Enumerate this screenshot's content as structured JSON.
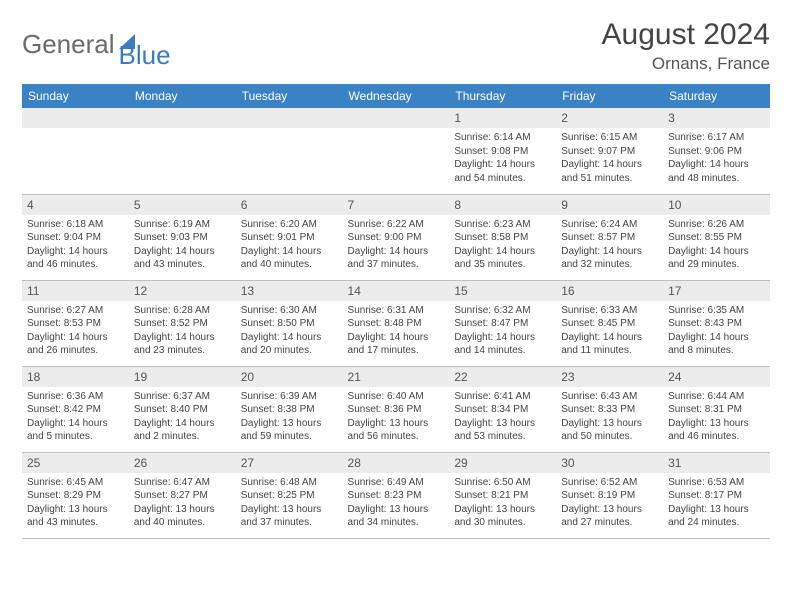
{
  "logo": {
    "text_gray": "General",
    "text_blue": "Blue"
  },
  "header": {
    "month": "August 2024",
    "location": "Ornans, France"
  },
  "colors": {
    "header_blue": "#3b82c4",
    "daynum_bg": "#ececec",
    "border": "#bfbfbf",
    "text": "#444444",
    "logo_gray": "#6b6b6b",
    "logo_blue": "#3b7bbf"
  },
  "weekdays": [
    "Sunday",
    "Monday",
    "Tuesday",
    "Wednesday",
    "Thursday",
    "Friday",
    "Saturday"
  ],
  "weeks": [
    [
      null,
      null,
      null,
      null,
      {
        "n": "1",
        "sr": "6:14 AM",
        "ss": "9:08 PM",
        "dl": "14 hours and 54 minutes."
      },
      {
        "n": "2",
        "sr": "6:15 AM",
        "ss": "9:07 PM",
        "dl": "14 hours and 51 minutes."
      },
      {
        "n": "3",
        "sr": "6:17 AM",
        "ss": "9:06 PM",
        "dl": "14 hours and 48 minutes."
      }
    ],
    [
      {
        "n": "4",
        "sr": "6:18 AM",
        "ss": "9:04 PM",
        "dl": "14 hours and 46 minutes."
      },
      {
        "n": "5",
        "sr": "6:19 AM",
        "ss": "9:03 PM",
        "dl": "14 hours and 43 minutes."
      },
      {
        "n": "6",
        "sr": "6:20 AM",
        "ss": "9:01 PM",
        "dl": "14 hours and 40 minutes."
      },
      {
        "n": "7",
        "sr": "6:22 AM",
        "ss": "9:00 PM",
        "dl": "14 hours and 37 minutes."
      },
      {
        "n": "8",
        "sr": "6:23 AM",
        "ss": "8:58 PM",
        "dl": "14 hours and 35 minutes."
      },
      {
        "n": "9",
        "sr": "6:24 AM",
        "ss": "8:57 PM",
        "dl": "14 hours and 32 minutes."
      },
      {
        "n": "10",
        "sr": "6:26 AM",
        "ss": "8:55 PM",
        "dl": "14 hours and 29 minutes."
      }
    ],
    [
      {
        "n": "11",
        "sr": "6:27 AM",
        "ss": "8:53 PM",
        "dl": "14 hours and 26 minutes."
      },
      {
        "n": "12",
        "sr": "6:28 AM",
        "ss": "8:52 PM",
        "dl": "14 hours and 23 minutes."
      },
      {
        "n": "13",
        "sr": "6:30 AM",
        "ss": "8:50 PM",
        "dl": "14 hours and 20 minutes."
      },
      {
        "n": "14",
        "sr": "6:31 AM",
        "ss": "8:48 PM",
        "dl": "14 hours and 17 minutes."
      },
      {
        "n": "15",
        "sr": "6:32 AM",
        "ss": "8:47 PM",
        "dl": "14 hours and 14 minutes."
      },
      {
        "n": "16",
        "sr": "6:33 AM",
        "ss": "8:45 PM",
        "dl": "14 hours and 11 minutes."
      },
      {
        "n": "17",
        "sr": "6:35 AM",
        "ss": "8:43 PM",
        "dl": "14 hours and 8 minutes."
      }
    ],
    [
      {
        "n": "18",
        "sr": "6:36 AM",
        "ss": "8:42 PM",
        "dl": "14 hours and 5 minutes."
      },
      {
        "n": "19",
        "sr": "6:37 AM",
        "ss": "8:40 PM",
        "dl": "14 hours and 2 minutes."
      },
      {
        "n": "20",
        "sr": "6:39 AM",
        "ss": "8:38 PM",
        "dl": "13 hours and 59 minutes."
      },
      {
        "n": "21",
        "sr": "6:40 AM",
        "ss": "8:36 PM",
        "dl": "13 hours and 56 minutes."
      },
      {
        "n": "22",
        "sr": "6:41 AM",
        "ss": "8:34 PM",
        "dl": "13 hours and 53 minutes."
      },
      {
        "n": "23",
        "sr": "6:43 AM",
        "ss": "8:33 PM",
        "dl": "13 hours and 50 minutes."
      },
      {
        "n": "24",
        "sr": "6:44 AM",
        "ss": "8:31 PM",
        "dl": "13 hours and 46 minutes."
      }
    ],
    [
      {
        "n": "25",
        "sr": "6:45 AM",
        "ss": "8:29 PM",
        "dl": "13 hours and 43 minutes."
      },
      {
        "n": "26",
        "sr": "6:47 AM",
        "ss": "8:27 PM",
        "dl": "13 hours and 40 minutes."
      },
      {
        "n": "27",
        "sr": "6:48 AM",
        "ss": "8:25 PM",
        "dl": "13 hours and 37 minutes."
      },
      {
        "n": "28",
        "sr": "6:49 AM",
        "ss": "8:23 PM",
        "dl": "13 hours and 34 minutes."
      },
      {
        "n": "29",
        "sr": "6:50 AM",
        "ss": "8:21 PM",
        "dl": "13 hours and 30 minutes."
      },
      {
        "n": "30",
        "sr": "6:52 AM",
        "ss": "8:19 PM",
        "dl": "13 hours and 27 minutes."
      },
      {
        "n": "31",
        "sr": "6:53 AM",
        "ss": "8:17 PM",
        "dl": "13 hours and 24 minutes."
      }
    ]
  ],
  "labels": {
    "sunrise": "Sunrise:",
    "sunset": "Sunset:",
    "daylight": "Daylight:"
  }
}
